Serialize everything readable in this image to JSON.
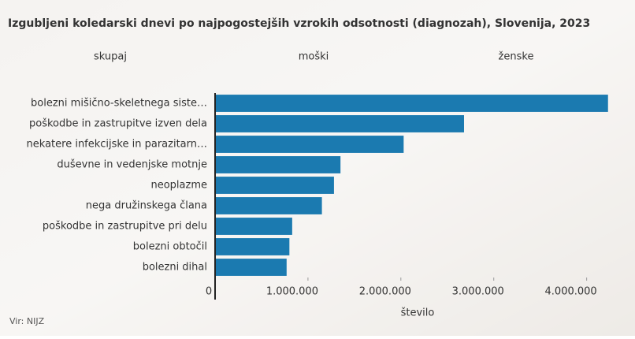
{
  "chart_data": {
    "type": "bar",
    "orientation": "horizontal",
    "title": "Izgubljeni koledarski dnevi po najpogostejših vzrokih odsotnosti (diagnozah), Slovenija, 2023",
    "tabs": [
      "skupaj",
      "moški",
      "ženske"
    ],
    "categories": [
      "bolezni mišično-skeletnega siste…",
      "poškodbe in zastrupitve izven dela",
      "nekatere infekcijske in parazitarn…",
      "duševne in vedenjske motnje",
      "neoplazme",
      "nega družinskega člana",
      "poškodbe in zastrupitve pri delu",
      "bolezni obtočil",
      "bolezni dihal"
    ],
    "values": [
      4230000,
      2680000,
      2030000,
      1350000,
      1280000,
      1150000,
      830000,
      800000,
      770000
    ],
    "color": "#1b7ab0",
    "xlim": [
      0,
      4300000
    ],
    "xticks": [
      0,
      {
        "value": 1000000,
        "label": "1.000.000"
      },
      {
        "value": 2000000,
        "label": "2.000.000"
      },
      {
        "value": 3000000,
        "label": "3.000.000"
      },
      {
        "value": 4000000,
        "label": "4.000.000"
      }
    ],
    "xlabel": "število",
    "source": "Vir: NIJZ"
  }
}
